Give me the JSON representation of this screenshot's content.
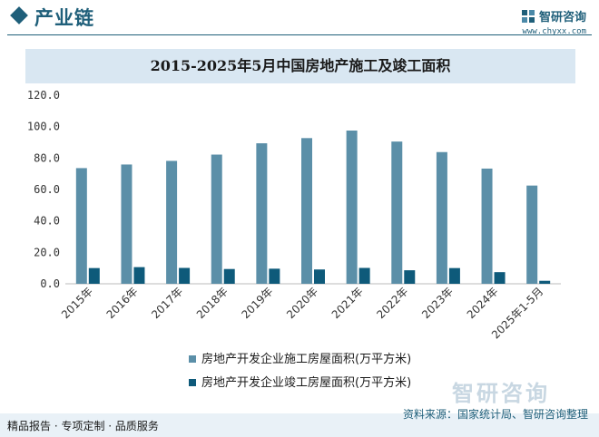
{
  "header": {
    "section_title": "产业链",
    "brand_name": "智研咨询",
    "brand_url": "www.chyxx.com"
  },
  "colors": {
    "series1": "#5b8fa8",
    "series2": "#0e5a7a",
    "brand": "#1f5f7a",
    "title_band": "#d9e7f2"
  },
  "chart_data": {
    "type": "bar",
    "title": "2015-2025年5月中国房地产施工及竣工面积",
    "categories": [
      "2015年",
      "2016年",
      "2017年",
      "2018年",
      "2019年",
      "2020年",
      "2021年",
      "2022年",
      "2023年",
      "2024年",
      "2025年1-5月"
    ],
    "series": [
      {
        "name": "房地产开发企业施工房屋面积(万平方米)",
        "values": [
          73.6,
          75.9,
          78.2,
          82.2,
          89.4,
          92.7,
          97.5,
          90.5,
          83.8,
          73.3,
          62.5
        ]
      },
      {
        "name": "房地产开发企业竣工房屋面积(万平方米)",
        "values": [
          10.0,
          10.6,
          10.1,
          9.4,
          9.6,
          9.1,
          10.1,
          8.6,
          10.0,
          7.4,
          1.9
        ]
      }
    ],
    "ylim": [
      0,
      120
    ],
    "yticks": [
      "120.0",
      "100.0",
      "80.0",
      "60.0",
      "40.0",
      "20.0",
      "0.0"
    ],
    "grid": false,
    "legend_position": "bottom-center"
  },
  "footer": {
    "left": "精品报告 · 专项定制 · 品质服务",
    "right": "资料来源：国家统计局、智研咨询整理",
    "watermark": "智研咨询"
  }
}
